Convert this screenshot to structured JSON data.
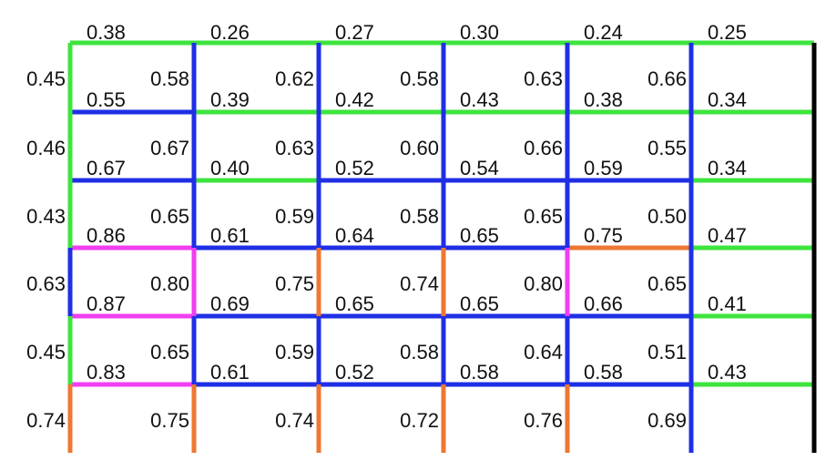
{
  "colors": {
    "green": "#3ee43e",
    "blue": "#1f2fe6",
    "magenta": "#f03ef0",
    "orange": "#ee7733",
    "black": "#000000"
  },
  "top_values": [
    "0.38",
    "0.26",
    "0.27",
    "0.30",
    "0.24",
    "0.25"
  ],
  "left_values": [
    "0.45",
    "0.46",
    "0.43",
    "0.63",
    "0.45",
    "0.74"
  ],
  "cell_upper": [
    [
      "0.58",
      "0.62",
      "0.58",
      "0.63",
      "0.66"
    ],
    [
      "0.67",
      "0.63",
      "0.60",
      "0.66",
      "0.55"
    ],
    [
      "0.65",
      "0.59",
      "0.58",
      "0.65",
      "0.50"
    ],
    [
      "0.80",
      "0.75",
      "0.74",
      "0.80",
      "0.65"
    ],
    [
      "0.65",
      "0.59",
      "0.58",
      "0.64",
      "0.51"
    ],
    [
      "0.75",
      "0.74",
      "0.72",
      "0.76",
      "0.69"
    ]
  ],
  "cell_lower": [
    [
      "0.55",
      "0.39",
      "0.42",
      "0.43",
      "0.38",
      "0.34"
    ],
    [
      "0.67",
      "0.40",
      "0.52",
      "0.54",
      "0.59",
      "0.34"
    ],
    [
      "0.86",
      "0.61",
      "0.64",
      "0.65",
      "0.75",
      "0.47"
    ],
    [
      "0.87",
      "0.69",
      "0.65",
      "0.65",
      "0.66",
      "0.41"
    ],
    [
      "0.83",
      "0.61",
      "0.52",
      "0.58",
      "0.58",
      "0.43"
    ]
  ],
  "h_edge_colors": [
    [
      "green",
      "green",
      "green",
      "green",
      "green",
      "green"
    ],
    [
      "blue",
      "green",
      "green",
      "green",
      "green",
      "green"
    ],
    [
      "blue",
      "green",
      "blue",
      "blue",
      "blue",
      "green"
    ],
    [
      "magenta",
      "blue",
      "blue",
      "blue",
      "orange",
      "green"
    ],
    [
      "magenta",
      "blue",
      "blue",
      "blue",
      "blue",
      "green"
    ],
    [
      "magenta",
      "blue",
      "blue",
      "blue",
      "blue",
      "green"
    ]
  ],
  "v_edge_colors": [
    [
      "green",
      "blue",
      "blue",
      "blue",
      "blue",
      "blue",
      "black"
    ],
    [
      "green",
      "blue",
      "blue",
      "blue",
      "blue",
      "blue",
      "black"
    ],
    [
      "green",
      "blue",
      "blue",
      "blue",
      "blue",
      "blue",
      "black"
    ],
    [
      "blue",
      "magenta",
      "orange",
      "orange",
      "magenta",
      "blue",
      "black"
    ],
    [
      "green",
      "blue",
      "blue",
      "blue",
      "blue",
      "blue",
      "black"
    ],
    [
      "orange",
      "orange",
      "orange",
      "orange",
      "orange",
      "blue",
      "black"
    ]
  ]
}
